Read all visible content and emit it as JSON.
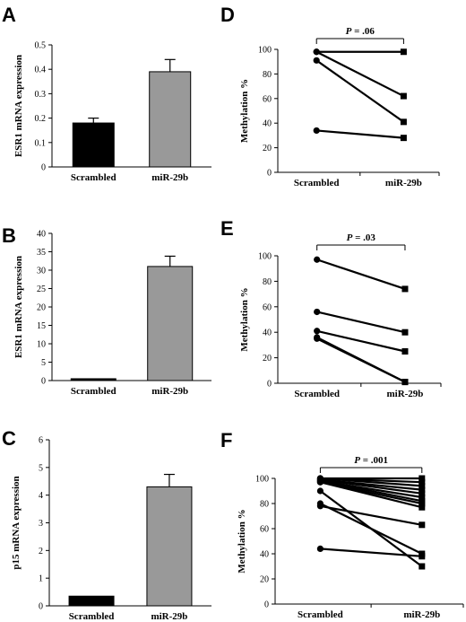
{
  "chart_data": [
    {
      "panel": "A",
      "type": "bar",
      "categories": [
        "Scrambled",
        "miR-29b"
      ],
      "values": [
        0.18,
        0.39
      ],
      "errors": [
        0.02,
        0.05
      ],
      "colors": [
        "#000000",
        "#999999"
      ],
      "ylabel": "ESR1 mRNA expression",
      "ylim": [
        0,
        0.5
      ],
      "yticks": [
        "0",
        "0.1",
        "0.2",
        "0.3",
        "0.4",
        "0.5"
      ]
    },
    {
      "panel": "B",
      "type": "bar",
      "categories": [
        "Scrambled",
        "miR-29b"
      ],
      "values": [
        0.5,
        31
      ],
      "errors": [
        0,
        2.8
      ],
      "colors": [
        "#000000",
        "#999999"
      ],
      "ylabel": "ESR1 mRNA expression",
      "ylim": [
        0,
        40
      ],
      "yticks": [
        "0",
        "5",
        "10",
        "15",
        "20",
        "25",
        "30",
        "35",
        "40"
      ]
    },
    {
      "panel": "C",
      "type": "bar",
      "categories": [
        "Scrambled",
        "miR-29b"
      ],
      "values": [
        0.35,
        4.3
      ],
      "errors": [
        0,
        0.45
      ],
      "colors": [
        "#000000",
        "#999999"
      ],
      "ylabel": "p15 mRNA expression",
      "ylim": [
        0,
        6
      ],
      "yticks": [
        "0",
        "1",
        "2",
        "3",
        "4",
        "5",
        "6"
      ]
    },
    {
      "panel": "D",
      "type": "line",
      "categories": [
        "Scrambled",
        "miR-29b"
      ],
      "ylabel": "Methylation %",
      "ylim": [
        0,
        100
      ],
      "yticks": [
        "0",
        "20",
        "40",
        "60",
        "80",
        "100"
      ],
      "p_value": ".06",
      "pairs": [
        [
          98,
          98
        ],
        [
          98,
          62
        ],
        [
          91,
          41
        ],
        [
          34,
          28
        ]
      ]
    },
    {
      "panel": "E",
      "type": "line",
      "categories": [
        "Scrambled",
        "miR-29b"
      ],
      "ylabel": "Methylation %",
      "ylim": [
        0,
        100
      ],
      "yticks": [
        "0",
        "20",
        "40",
        "60",
        "80",
        "100"
      ],
      "p_value": ".03",
      "pairs": [
        [
          97,
          74
        ],
        [
          56,
          40
        ],
        [
          41,
          25
        ],
        [
          36,
          1
        ],
        [
          35,
          1
        ]
      ]
    },
    {
      "panel": "F",
      "type": "line",
      "categories": [
        "Scrambled",
        "miR-29b"
      ],
      "ylabel": "Methylation %",
      "ylim": [
        0,
        100
      ],
      "yticks": [
        "0",
        "20",
        "40",
        "60",
        "80",
        "100"
      ],
      "p_value": ".001",
      "pairs": [
        [
          100,
          100
        ],
        [
          100,
          97
        ],
        [
          100,
          94
        ],
        [
          99,
          91
        ],
        [
          99,
          88
        ],
        [
          98,
          85
        ],
        [
          98,
          82
        ],
        [
          97,
          80
        ],
        [
          97,
          77
        ],
        [
          90,
          30
        ],
        [
          80,
          40
        ],
        [
          78,
          63
        ],
        [
          44,
          38
        ]
      ]
    }
  ]
}
